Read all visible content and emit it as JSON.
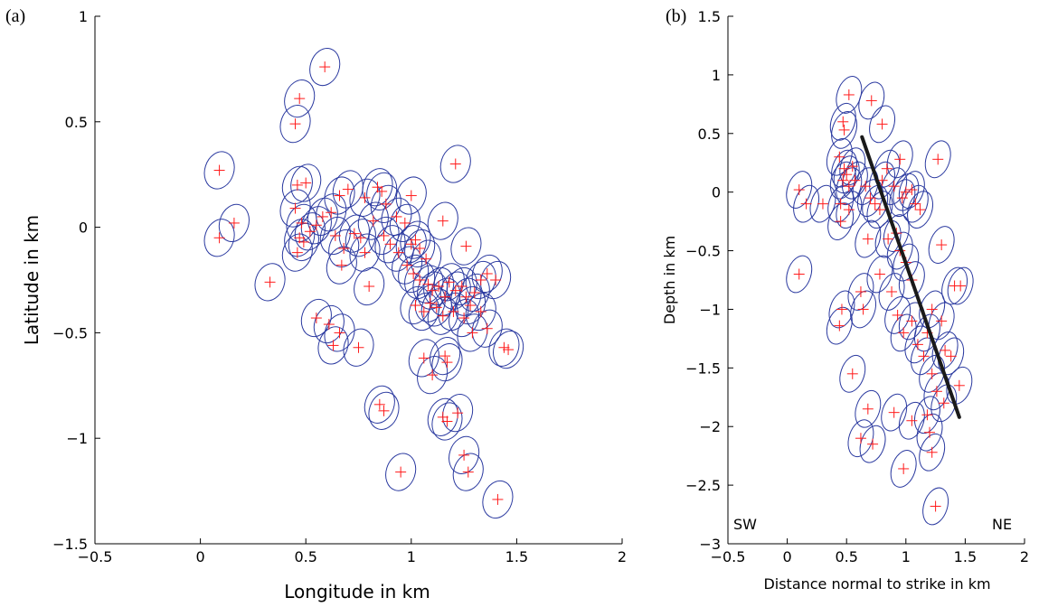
{
  "colors": {
    "ellipse": "#2b3aa0",
    "marker": "#ff1a1a",
    "fault_line": "#1a1a1a",
    "axis": "#000000"
  },
  "chart_data": [
    {
      "panel_label": "(a)",
      "type": "scatter",
      "marker": "plus",
      "error_shape": "ellipse",
      "title": "",
      "xlabel": "Longitude in km",
      "ylabel": "Latitude in km",
      "xlim": [
        -0.5,
        2
      ],
      "ylim": [
        -1.5,
        1
      ],
      "xticks": [
        -0.5,
        0,
        0.5,
        1,
        1.5,
        2
      ],
      "yticks": [
        -1.5,
        -1,
        -0.5,
        0,
        0.5,
        1
      ],
      "xtick_labels": [
        "−0.5",
        "0",
        "0.5",
        "1",
        "1.5",
        "2"
      ],
      "ytick_labels": [
        "−1.5",
        "−1",
        "−0.5",
        "0",
        "0.5",
        "1"
      ],
      "grid": false,
      "points": [
        {
          "x": 0.59,
          "y": 0.76
        },
        {
          "x": 0.47,
          "y": 0.61
        },
        {
          "x": 0.45,
          "y": 0.49
        },
        {
          "x": 0.09,
          "y": 0.27
        },
        {
          "x": 0.16,
          "y": 0.02
        },
        {
          "x": 0.09,
          "y": -0.05
        },
        {
          "x": 0.33,
          "y": -0.26
        },
        {
          "x": 1.21,
          "y": 0.3
        },
        {
          "x": 0.46,
          "y": 0.2
        },
        {
          "x": 0.5,
          "y": 0.21
        },
        {
          "x": 0.45,
          "y": 0.09
        },
        {
          "x": 0.48,
          "y": 0.02
        },
        {
          "x": 0.52,
          "y": -0.02
        },
        {
          "x": 0.47,
          "y": -0.05
        },
        {
          "x": 0.49,
          "y": -0.07
        },
        {
          "x": 0.46,
          "y": -0.12
        },
        {
          "x": 0.55,
          "y": 0.01
        },
        {
          "x": 0.58,
          "y": 0.05
        },
        {
          "x": 0.62,
          "y": 0.07
        },
        {
          "x": 0.66,
          "y": 0.15
        },
        {
          "x": 0.7,
          "y": 0.18
        },
        {
          "x": 0.64,
          "y": -0.04
        },
        {
          "x": 0.68,
          "y": -0.1
        },
        {
          "x": 0.67,
          "y": -0.18
        },
        {
          "x": 0.73,
          "y": -0.03
        },
        {
          "x": 0.76,
          "y": -0.05
        },
        {
          "x": 0.78,
          "y": 0.14
        },
        {
          "x": 0.84,
          "y": 0.19
        },
        {
          "x": 0.86,
          "y": 0.17
        },
        {
          "x": 0.88,
          "y": 0.11
        },
        {
          "x": 0.82,
          "y": 0.03
        },
        {
          "x": 0.87,
          "y": -0.04
        },
        {
          "x": 0.9,
          "y": -0.08
        },
        {
          "x": 0.78,
          "y": -0.12
        },
        {
          "x": 0.8,
          "y": -0.28
        },
        {
          "x": 0.93,
          "y": 0.05
        },
        {
          "x": 0.97,
          "y": 0.02
        },
        {
          "x": 1.0,
          "y": 0.15
        },
        {
          "x": 0.94,
          "y": -0.12
        },
        {
          "x": 0.98,
          "y": -0.18
        },
        {
          "x": 1.0,
          "y": -0.08
        },
        {
          "x": 1.02,
          "y": -0.06
        },
        {
          "x": 1.04,
          "y": -0.1
        },
        {
          "x": 1.07,
          "y": -0.15
        },
        {
          "x": 1.01,
          "y": -0.22
        },
        {
          "x": 1.04,
          "y": -0.25
        },
        {
          "x": 1.08,
          "y": -0.27
        },
        {
          "x": 1.1,
          "y": -0.3
        },
        {
          "x": 1.13,
          "y": -0.28
        },
        {
          "x": 1.16,
          "y": -0.33
        },
        {
          "x": 1.18,
          "y": -0.26
        },
        {
          "x": 1.21,
          "y": -0.3
        },
        {
          "x": 1.24,
          "y": -0.28
        },
        {
          "x": 1.26,
          "y": -0.33
        },
        {
          "x": 1.3,
          "y": -0.31
        },
        {
          "x": 1.33,
          "y": -0.25
        },
        {
          "x": 1.36,
          "y": -0.22
        },
        {
          "x": 1.4,
          "y": -0.25
        },
        {
          "x": 1.15,
          "y": 0.03
        },
        {
          "x": 1.26,
          "y": -0.09
        },
        {
          "x": 1.09,
          "y": -0.36
        },
        {
          "x": 1.12,
          "y": -0.38
        },
        {
          "x": 1.15,
          "y": -0.42
        },
        {
          "x": 1.2,
          "y": -0.4
        },
        {
          "x": 1.25,
          "y": -0.43
        },
        {
          "x": 1.28,
          "y": -0.37
        },
        {
          "x": 1.33,
          "y": -0.4
        },
        {
          "x": 1.36,
          "y": -0.48
        },
        {
          "x": 1.29,
          "y": -0.5
        },
        {
          "x": 1.02,
          "y": -0.37
        },
        {
          "x": 1.06,
          "y": -0.4
        },
        {
          "x": 0.55,
          "y": -0.43
        },
        {
          "x": 0.61,
          "y": -0.46
        },
        {
          "x": 0.66,
          "y": -0.5
        },
        {
          "x": 0.63,
          "y": -0.56
        },
        {
          "x": 0.75,
          "y": -0.57
        },
        {
          "x": 1.44,
          "y": -0.57
        },
        {
          "x": 1.46,
          "y": -0.58
        },
        {
          "x": 1.06,
          "y": -0.62
        },
        {
          "x": 1.16,
          "y": -0.61
        },
        {
          "x": 1.17,
          "y": -0.64
        },
        {
          "x": 1.1,
          "y": -0.7
        },
        {
          "x": 0.85,
          "y": -0.84
        },
        {
          "x": 0.87,
          "y": -0.87
        },
        {
          "x": 1.15,
          "y": -0.9
        },
        {
          "x": 1.17,
          "y": -0.92
        },
        {
          "x": 1.22,
          "y": -0.88
        },
        {
          "x": 1.25,
          "y": -1.08
        },
        {
          "x": 1.27,
          "y": -1.16
        },
        {
          "x": 0.95,
          "y": -1.16
        },
        {
          "x": 1.41,
          "y": -1.29
        }
      ]
    },
    {
      "panel_label": "(b)",
      "type": "scatter",
      "marker": "plus",
      "error_shape": "ellipse",
      "title": "",
      "xlabel": "Distance normal to strike in km",
      "ylabel": "Depth in km",
      "xlim": [
        -0.5,
        2
      ],
      "ylim": [
        -3,
        1.5
      ],
      "xticks": [
        -0.5,
        0,
        0.5,
        1,
        1.5,
        2
      ],
      "yticks": [
        -3,
        -2.5,
        -2,
        -1.5,
        -1,
        -0.5,
        0,
        0.5,
        1,
        1.5
      ],
      "xtick_labels": [
        "−0.5",
        "0",
        "0.5",
        "1",
        "1.5",
        "2"
      ],
      "ytick_labels": [
        "−3",
        "−2.5",
        "−2",
        "−1.5",
        "−1",
        "−0.5",
        "0",
        "0.5",
        "1",
        "1.5"
      ],
      "grid": false,
      "annotations": [
        "SW",
        "NE"
      ],
      "fault_line": {
        "x": [
          0.63,
          1.45
        ],
        "y": [
          0.47,
          -1.92
        ]
      },
      "points": [
        {
          "x": 0.52,
          "y": 0.83
        },
        {
          "x": 0.71,
          "y": 0.78
        },
        {
          "x": 0.47,
          "y": 0.6
        },
        {
          "x": 0.48,
          "y": 0.53
        },
        {
          "x": 0.8,
          "y": 0.58
        },
        {
          "x": 0.1,
          "y": 0.02
        },
        {
          "x": 0.16,
          "y": -0.1
        },
        {
          "x": 0.3,
          "y": -0.1
        },
        {
          "x": 0.1,
          "y": -0.7
        },
        {
          "x": 0.44,
          "y": 0.3
        },
        {
          "x": 0.48,
          "y": 0.2
        },
        {
          "x": 0.5,
          "y": 0.15
        },
        {
          "x": 0.47,
          "y": 0.1
        },
        {
          "x": 0.52,
          "y": 0.05
        },
        {
          "x": 0.45,
          "y": -0.1
        },
        {
          "x": 0.52,
          "y": -0.15
        },
        {
          "x": 0.45,
          "y": -0.25
        },
        {
          "x": 0.55,
          "y": 0.22
        },
        {
          "x": 0.57,
          "y": 0.1
        },
        {
          "x": 0.66,
          "y": 0.05
        },
        {
          "x": 0.7,
          "y": -0.05
        },
        {
          "x": 0.74,
          "y": -0.1
        },
        {
          "x": 0.78,
          "y": -0.15
        },
        {
          "x": 0.8,
          "y": 0.1
        },
        {
          "x": 0.84,
          "y": 0.2
        },
        {
          "x": 0.9,
          "y": 0.05
        },
        {
          "x": 0.95,
          "y": 0.28
        },
        {
          "x": 0.97,
          "y": -0.05
        },
        {
          "x": 1.0,
          "y": 0.0
        },
        {
          "x": 1.05,
          "y": 0.02
        },
        {
          "x": 1.08,
          "y": -0.1
        },
        {
          "x": 1.12,
          "y": -0.15
        },
        {
          "x": 1.27,
          "y": 0.28
        },
        {
          "x": 1.3,
          "y": -0.45
        },
        {
          "x": 0.68,
          "y": -0.4
        },
        {
          "x": 0.85,
          "y": -0.4
        },
        {
          "x": 0.92,
          "y": -0.35
        },
        {
          "x": 0.95,
          "y": -0.5
        },
        {
          "x": 1.0,
          "y": -0.6
        },
        {
          "x": 1.05,
          "y": -0.75
        },
        {
          "x": 0.78,
          "y": -0.7
        },
        {
          "x": 0.88,
          "y": -0.85
        },
        {
          "x": 0.62,
          "y": -0.85
        },
        {
          "x": 0.64,
          "y": -1.0
        },
        {
          "x": 0.46,
          "y": -1.0
        },
        {
          "x": 0.44,
          "y": -1.14
        },
        {
          "x": 0.93,
          "y": -1.05
        },
        {
          "x": 0.98,
          "y": -1.2
        },
        {
          "x": 1.05,
          "y": -1.1
        },
        {
          "x": 1.1,
          "y": -1.3
        },
        {
          "x": 1.15,
          "y": -1.4
        },
        {
          "x": 1.18,
          "y": -1.2
        },
        {
          "x": 1.22,
          "y": -1.0
        },
        {
          "x": 1.3,
          "y": -1.1
        },
        {
          "x": 1.33,
          "y": -1.35
        },
        {
          "x": 1.38,
          "y": -1.4
        },
        {
          "x": 1.41,
          "y": -0.8
        },
        {
          "x": 1.46,
          "y": -0.8
        },
        {
          "x": 1.22,
          "y": -1.55
        },
        {
          "x": 1.26,
          "y": -1.7
        },
        {
          "x": 1.32,
          "y": -1.8
        },
        {
          "x": 1.18,
          "y": -1.9
        },
        {
          "x": 1.45,
          "y": -1.65
        },
        {
          "x": 0.55,
          "y": -1.55
        },
        {
          "x": 0.68,
          "y": -1.85
        },
        {
          "x": 0.62,
          "y": -2.1
        },
        {
          "x": 0.72,
          "y": -2.15
        },
        {
          "x": 0.9,
          "y": -1.88
        },
        {
          "x": 1.05,
          "y": -1.95
        },
        {
          "x": 1.2,
          "y": -2.05
        },
        {
          "x": 0.98,
          "y": -2.36
        },
        {
          "x": 1.22,
          "y": -2.22
        },
        {
          "x": 1.25,
          "y": -2.68
        }
      ]
    }
  ]
}
